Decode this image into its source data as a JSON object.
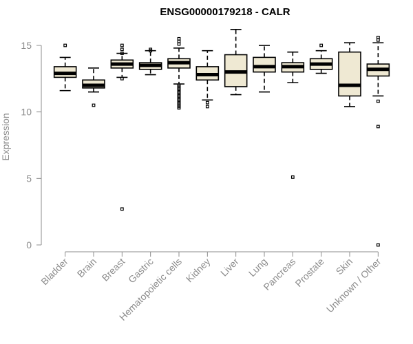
{
  "chart_data": {
    "type": "boxplot",
    "title": "ENSG00000179218 - CALR",
    "ylabel": "Expression",
    "xlabel": "",
    "ylim": [
      0,
      16.5
    ],
    "yticks": [
      0,
      5,
      10,
      15
    ],
    "categories": [
      "Bladder",
      "Brain",
      "Breast",
      "Gastric",
      "Hematopoietic cells",
      "Kidney",
      "Liver",
      "Lung",
      "Pancreas",
      "Prostate",
      "Skin",
      "Unknown / Other"
    ],
    "boxes": [
      {
        "min": 11.6,
        "q1": 12.6,
        "median": 12.9,
        "q3": 13.4,
        "max": 14.1,
        "outliers": [
          15.0
        ]
      },
      {
        "min": 11.5,
        "q1": 11.8,
        "median": 12.0,
        "q3": 12.4,
        "max": 13.3,
        "outliers": [
          10.5
        ]
      },
      {
        "min": 12.6,
        "q1": 13.3,
        "median": 13.6,
        "q3": 13.9,
        "max": 14.4,
        "outliers": [
          15.0,
          14.7,
          14.4,
          12.5,
          2.7
        ]
      },
      {
        "min": 12.8,
        "q1": 13.2,
        "median": 13.5,
        "q3": 13.7,
        "max": 14.6,
        "outliers": [
          14.7,
          14.6
        ]
      },
      {
        "min": 12.1,
        "q1": 13.3,
        "median": 13.7,
        "q3": 14.0,
        "max": 14.8,
        "outliers": [
          15.5,
          15.3,
          15.1,
          12.0,
          11.9,
          11.8,
          11.7,
          11.6,
          11.5,
          11.4,
          11.3,
          11.2,
          11.1,
          11.0,
          10.9,
          10.8,
          10.7,
          10.6,
          10.5,
          10.4,
          10.3
        ]
      },
      {
        "min": 10.9,
        "q1": 12.4,
        "median": 12.8,
        "q3": 13.4,
        "max": 14.6,
        "outliers": [
          10.7,
          10.4
        ]
      },
      {
        "min": 11.3,
        "q1": 11.9,
        "median": 13.0,
        "q3": 14.3,
        "max": 16.2,
        "outliers": []
      },
      {
        "min": 11.5,
        "q1": 13.0,
        "median": 13.4,
        "q3": 14.1,
        "max": 15.0,
        "outliers": []
      },
      {
        "min": 12.2,
        "q1": 13.0,
        "median": 13.4,
        "q3": 13.7,
        "max": 14.5,
        "outliers": [
          5.1
        ]
      },
      {
        "min": 12.9,
        "q1": 13.2,
        "median": 13.6,
        "q3": 14.0,
        "max": 14.6,
        "outliers": [
          15.0
        ]
      },
      {
        "min": 10.4,
        "q1": 11.2,
        "median": 12.0,
        "q3": 14.5,
        "max": 15.2,
        "outliers": []
      },
      {
        "min": 11.2,
        "q1": 12.7,
        "median": 13.2,
        "q3": 13.6,
        "max": 15.2,
        "outliers": [
          15.6,
          15.4,
          10.8,
          8.9,
          0.0
        ]
      }
    ],
    "box_fill": "#efe9d3",
    "box_stroke": "#000000",
    "axis_color": "#8c8c8c",
    "grid": false,
    "legend": "none"
  }
}
